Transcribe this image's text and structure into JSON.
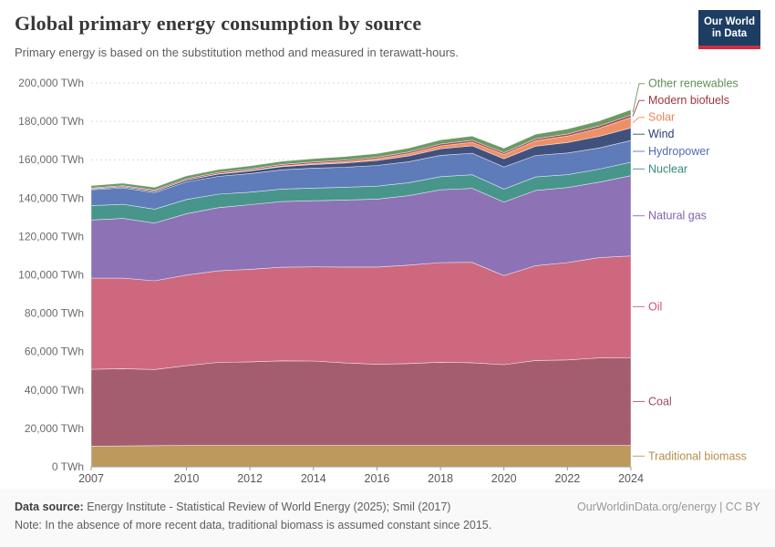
{
  "header": {
    "title": "Global primary energy consumption by source",
    "subtitle": "Primary energy is based on the substitution method and measured in terawatt-hours.",
    "logo": {
      "line1": "Our World",
      "line2": "in Data",
      "bg_color": "#1d3d63",
      "accent_color": "#cf2e41"
    }
  },
  "chart_data": {
    "type": "area",
    "stacked": true,
    "unit": "TWh",
    "x": [
      2007,
      2008,
      2009,
      2010,
      2011,
      2012,
      2013,
      2014,
      2015,
      2016,
      2017,
      2018,
      2019,
      2020,
      2021,
      2022,
      2023,
      2024
    ],
    "x_tick_labels": [
      "2007",
      "2010",
      "2012",
      "2014",
      "2016",
      "2018",
      "2020",
      "2022",
      "2024"
    ],
    "x_ticks": [
      2007,
      2010,
      2012,
      2014,
      2016,
      2018,
      2020,
      2022,
      2024
    ],
    "y_axis": {
      "min": 0,
      "max": 200000,
      "tick_step": 20000
    },
    "y_tick_labels": [
      "0 TWh",
      "20,000 TWh",
      "40,000 TWh",
      "60,000 TWh",
      "80,000 TWh",
      "100,000 TWh",
      "120,000 TWh",
      "140,000 TWh",
      "160,000 TWh",
      "180,000 TWh",
      "200,000 TWh"
    ],
    "grid": "dashed-horizontal",
    "legend_position": "right",
    "series": [
      {
        "name": "Traditional biomass",
        "color": "#b78e4c",
        "values": [
          10800,
          10900,
          11000,
          11100,
          11100,
          11100,
          11100,
          11100,
          11100,
          11100,
          11100,
          11100,
          11100,
          11100,
          11100,
          11100,
          11100,
          11100
        ]
      },
      {
        "name": "Coal",
        "color": "#9a4b5f",
        "values": [
          40000,
          40200,
          39700,
          41600,
          43300,
          43600,
          44100,
          44000,
          43000,
          42300,
          42700,
          43400,
          43100,
          42100,
          44300,
          44600,
          45600,
          45800
        ]
      },
      {
        "name": "Oil",
        "color": "#c85871",
        "values": [
          47500,
          47200,
          46200,
          47200,
          47700,
          48200,
          48800,
          49100,
          50000,
          50700,
          51300,
          51900,
          52300,
          46400,
          49400,
          50700,
          52300,
          53000
        ]
      },
      {
        "name": "Natural gas",
        "color": "#8163ad",
        "values": [
          30300,
          31100,
          30100,
          32000,
          32900,
          33700,
          34200,
          34400,
          34900,
          35400,
          36200,
          37900,
          38600,
          38300,
          39200,
          39100,
          39300,
          41800
        ]
      },
      {
        "name": "Nuclear",
        "color": "#348a7e",
        "values": [
          7450,
          7380,
          7230,
          7370,
          7020,
          6500,
          6510,
          6610,
          6660,
          6710,
          6740,
          6860,
          7070,
          6790,
          7030,
          6700,
          6820,
          7040
        ]
      },
      {
        "name": "Hydropower",
        "color": "#4d6db3",
        "values": [
          8250,
          8550,
          8600,
          9200,
          9300,
          9700,
          10000,
          10400,
          10400,
          10800,
          10900,
          11100,
          11200,
          11500,
          11200,
          11300,
          11000,
          11300
        ]
      },
      {
        "name": "Wind",
        "color": "#2c3e70",
        "values": [
          460,
          590,
          730,
          900,
          1160,
          1380,
          1700,
          1890,
          2250,
          2580,
          3030,
          3420,
          3880,
          4270,
          4870,
          5490,
          6040,
          6520
        ]
      },
      {
        "name": "Solar",
        "color": "#ec8455",
        "values": [
          20,
          35,
          55,
          90,
          170,
          270,
          360,
          500,
          670,
          870,
          1180,
          1540,
          1860,
          2250,
          2760,
          3380,
          4250,
          5490
        ]
      },
      {
        "name": "Modern biofuels",
        "color": "#a1343f",
        "values": [
          430,
          520,
          580,
          660,
          680,
          700,
          760,
          800,
          820,
          850,
          880,
          950,
          1000,
          960,
          1020,
          1080,
          1200,
          1250
        ]
      },
      {
        "name": "Other renewables",
        "color": "#5c8f54",
        "values": [
          1280,
          1330,
          1400,
          1470,
          1530,
          1600,
          1680,
          1770,
          1850,
          1940,
          2040,
          2150,
          2250,
          2340,
          2420,
          2550,
          2630,
          2740
        ]
      }
    ]
  },
  "footer": {
    "data_source_label": "Data source:",
    "data_source": "Energy Institute - Statistical Review of World Energy (2025); Smil (2017)",
    "credit": "OurWorldinData.org/energy | CC BY",
    "note_label": "Note:",
    "note": "In the absence of more recent data, traditional biomass is assumed constant since 2015."
  }
}
